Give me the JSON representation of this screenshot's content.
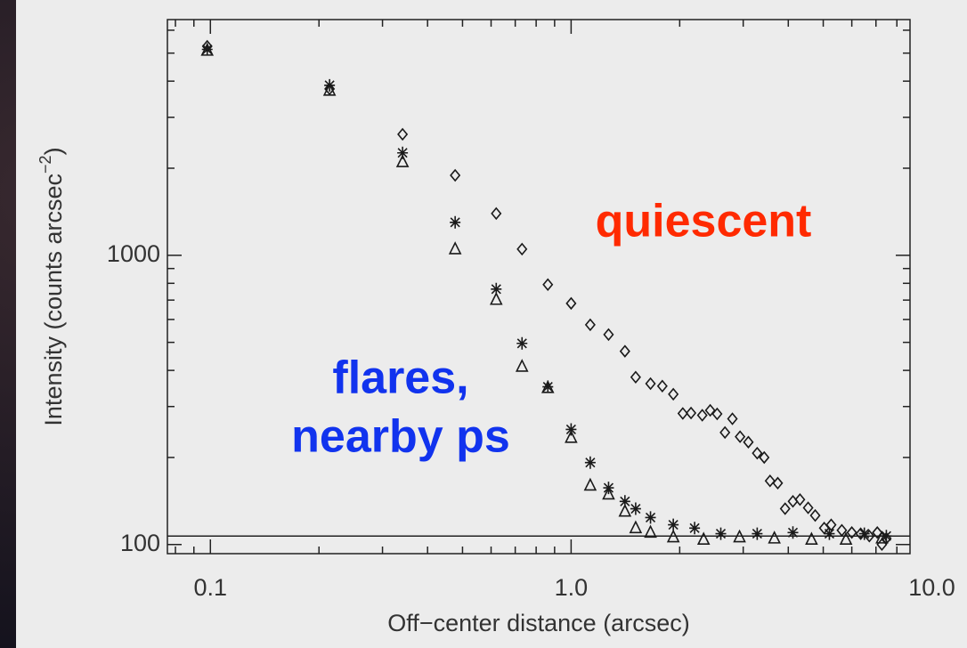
{
  "chart_data": {
    "type": "scatter",
    "x_label": "Off−center distance (arcsec)",
    "y_label": {
      "text": "Intensity (counts arcsec",
      "superscript": "−2",
      "suffix": ")"
    },
    "log_x": true,
    "log_y": true,
    "xlim": [
      0.076,
      8.7
    ],
    "ylim": [
      93,
      6530
    ],
    "xticks": [
      {
        "value": 0.1,
        "label": "0.1"
      },
      {
        "value": 1,
        "label": "1.0"
      },
      {
        "value": 10,
        "label": "10.0"
      }
    ],
    "yticks": [
      100,
      1000
    ],
    "hline": 107,
    "series": [
      {
        "marker": "diamond",
        "color": "#1a1a1a",
        "x": [
          0.098,
          0.214,
          0.341,
          0.477,
          0.62,
          0.731,
          0.862,
          1.0,
          1.13,
          1.27,
          1.41,
          1.51,
          1.66,
          1.79,
          1.92,
          2.04,
          2.15,
          2.31,
          2.43,
          2.54,
          2.67,
          2.8,
          2.94,
          3.1,
          3.28,
          3.43,
          3.56,
          3.74,
          3.92,
          4.12,
          4.31,
          4.54,
          4.75,
          5.03,
          5.26,
          5.63,
          6.0,
          6.35,
          6.71,
          7.06,
          7.27,
          7.48
        ],
        "values": [
          5280,
          3760,
          2620,
          1890,
          1395,
          1050,
          792,
          682,
          575,
          532,
          466,
          379,
          360,
          353,
          331,
          284,
          285,
          280,
          291,
          283,
          244,
          272,
          236,
          226,
          207,
          200,
          166,
          163,
          133,
          141,
          143,
          134,
          126,
          114,
          117,
          112,
          110,
          109,
          107,
          110,
          100,
          105
        ]
      },
      {
        "marker": "asterisk",
        "color": "#1a1a1a",
        "x": [
          0.098,
          0.214,
          0.341,
          0.477,
          0.62,
          0.731,
          0.862,
          1.0,
          1.13,
          1.27,
          1.41,
          1.51,
          1.66,
          1.92,
          2.2,
          2.6,
          3.28,
          4.12,
          5.2,
          6.5,
          7.48
        ],
        "values": [
          5150,
          3870,
          2260,
          1300,
          764,
          496,
          351,
          250,
          192,
          157,
          141,
          133,
          124,
          117,
          114,
          109,
          109,
          110,
          109,
          109,
          107
        ]
      },
      {
        "marker": "triangle",
        "color": "#1a1a1a",
        "x": [
          0.098,
          0.214,
          0.341,
          0.477,
          0.62,
          0.731,
          0.862,
          1.0,
          1.13,
          1.27,
          1.41,
          1.51,
          1.66,
          1.92,
          2.33,
          2.93,
          3.66,
          4.64,
          5.78,
          7.27
        ],
        "values": [
          5100,
          3710,
          2100,
          1050,
          702,
          412,
          348,
          234,
          160,
          149,
          130,
          114,
          110,
          106,
          104,
          106,
          105,
          104,
          104,
          105
        ]
      }
    ],
    "annotations": [
      {
        "lines": [
          "quiescent"
        ],
        "color": "#ff2a00"
      },
      {
        "lines": [
          "flares,",
          "nearby ps"
        ],
        "color": "#1133ee"
      }
    ]
  }
}
